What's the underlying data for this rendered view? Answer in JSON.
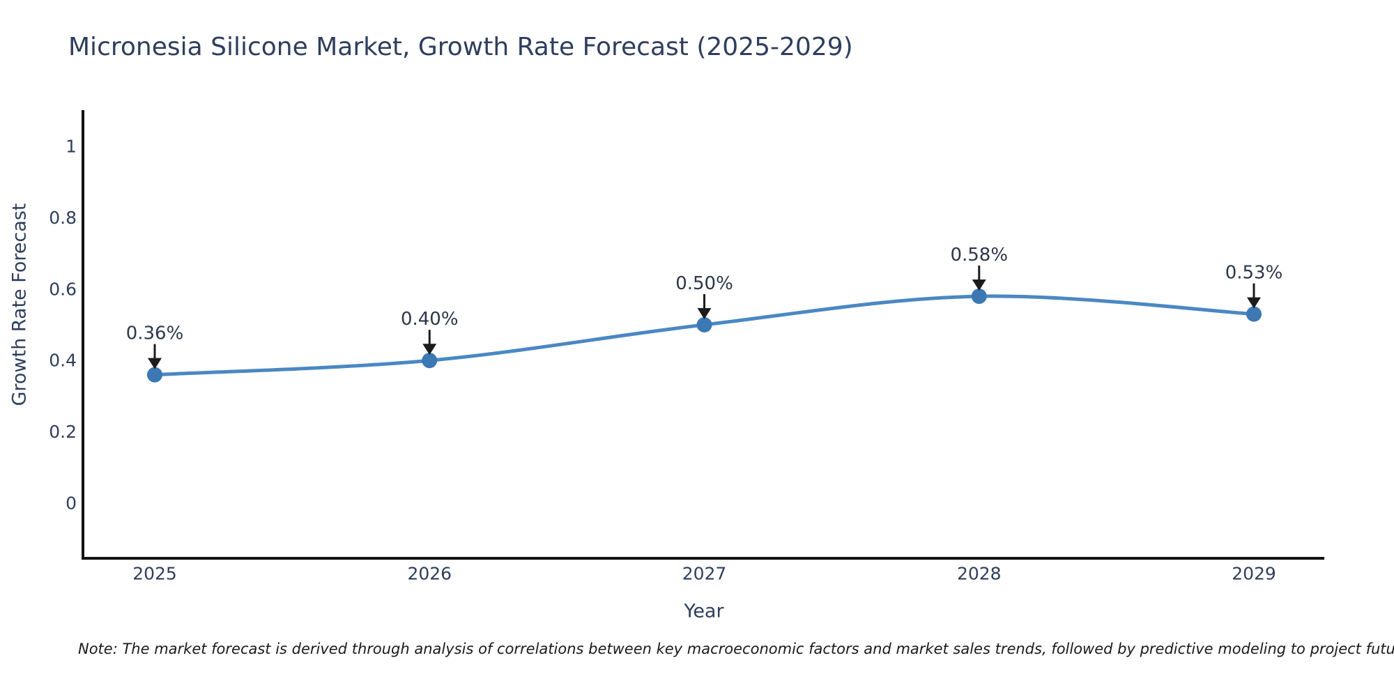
{
  "title": "Micronesia Silicone Market, Growth Rate Forecast (2025-2029)",
  "note": "Note: The market forecast is derived through analysis of correlations between key macroeconomic factors and market sales trends, followed by predictive modeling to project future sales",
  "chart_data": {
    "type": "line",
    "title": "Micronesia Silicone Market, Growth Rate Forecast (2025-2029)",
    "x": [
      "2025",
      "2026",
      "2027",
      "2028",
      "2029"
    ],
    "values": [
      0.36,
      0.4,
      0.5,
      0.58,
      0.53
    ],
    "point_labels": [
      "0.36%",
      "0.40%",
      "0.50%",
      "0.58%",
      "0.53%"
    ],
    "xlabel": "Year",
    "ylabel": "Growth Rate Forecast",
    "yticks": [
      0,
      0.2,
      0.4,
      0.6,
      0.8,
      1
    ],
    "ytick_labels": [
      "0",
      "0.2",
      "0.4",
      "0.6",
      "0.8",
      "1"
    ],
    "ylim": [
      -0.15,
      1.1
    ],
    "grid": false,
    "legend": false,
    "line_smoothing": "spline",
    "colors": {
      "line": "#4b87c3",
      "marker": "#3c78b4",
      "arrow": "#1c1c1c",
      "axis": "#111111",
      "text": "#2f3e5c",
      "note_text": "#1a1a1a",
      "background": "#ffffff"
    }
  }
}
